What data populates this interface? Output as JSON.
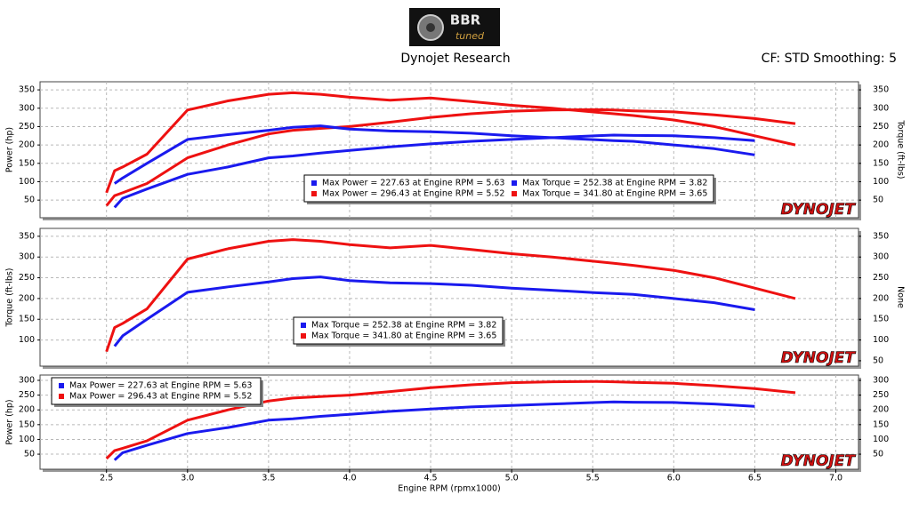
{
  "header": {
    "logo": "BBR",
    "logo_sub": "tuned",
    "title": "Dynojet Research",
    "settings": "CF: STD Smoothing: 5"
  },
  "chart_data": [
    {
      "type": "line",
      "ylabel": "Power (hp)",
      "y2label": "Torque (ft-lbs)",
      "watermark": "DYNOJET",
      "xlim": [
        2.09,
        7.14
      ],
      "ylim": [
        2,
        372
      ],
      "yticks": [
        50,
        100,
        150,
        200,
        250,
        300,
        350
      ],
      "y2lim": [
        2,
        372
      ],
      "y2ticks": [
        50,
        100,
        150,
        200,
        250,
        300,
        350
      ],
      "grid": true,
      "legend": "center",
      "x": [
        2.5,
        2.55,
        2.6,
        2.75,
        3.0,
        3.25,
        3.5,
        3.65,
        3.82,
        4.0,
        4.25,
        4.5,
        4.75,
        5.0,
        5.25,
        5.52,
        5.63,
        5.75,
        6.0,
        6.25,
        6.5,
        6.75
      ],
      "series": [
        {
          "name": "Max Power = 227.63 at Engine RPM = 5.63",
          "color": "#1a1aee",
          "values": [
            null,
            30,
            55,
            80,
            120,
            140,
            165,
            170,
            178,
            185,
            195,
            203,
            210,
            215,
            220,
            225,
            227,
            226,
            225,
            220,
            212,
            null
          ]
        },
        {
          "name": "Max Power = 296.43 at Engine RPM = 5.52",
          "color": "#ee1111",
          "values": [
            35,
            62,
            70,
            95,
            165,
            200,
            230,
            240,
            245,
            250,
            262,
            275,
            285,
            292,
            295,
            296,
            295,
            293,
            290,
            282,
            272,
            258
          ]
        },
        {
          "name": "Max Torque = 252.38 at Engine RPM = 3.82",
          "color": "#1a1aee",
          "axis": "y2",
          "values": [
            null,
            95,
            110,
            150,
            215,
            228,
            240,
            248,
            252,
            243,
            238,
            236,
            232,
            225,
            220,
            214,
            212,
            210,
            200,
            190,
            173,
            null
          ]
        },
        {
          "name": "Max Torque = 341.80 at Engine RPM = 3.65",
          "color": "#ee1111",
          "axis": "y2",
          "values": [
            70,
            130,
            140,
            175,
            295,
            320,
            338,
            342,
            338,
            330,
            322,
            328,
            318,
            308,
            300,
            289,
            285,
            280,
            268,
            250,
            225,
            200
          ]
        }
      ]
    },
    {
      "type": "line",
      "ylabel": "Torque (ft-lbs)",
      "y2label": "None",
      "watermark": "DYNOJET",
      "xlim": [
        2.09,
        7.14
      ],
      "ylim": [
        37,
        369
      ],
      "yticks": [
        100,
        150,
        200,
        250,
        300,
        350
      ],
      "y2lim": [
        37,
        369
      ],
      "y2ticks": [
        50,
        100,
        150,
        200,
        250,
        300,
        350
      ],
      "grid": true,
      "legend": "lower-center",
      "x": [
        2.5,
        2.55,
        2.6,
        2.75,
        3.0,
        3.25,
        3.5,
        3.65,
        3.82,
        4.0,
        4.25,
        4.5,
        4.75,
        5.0,
        5.25,
        5.52,
        5.63,
        5.75,
        6.0,
        6.25,
        6.5,
        6.75
      ],
      "series": [
        {
          "name": "Max Torque = 252.38 at Engine RPM = 3.82",
          "color": "#1a1aee",
          "values": [
            null,
            85,
            110,
            150,
            215,
            228,
            240,
            248,
            252,
            243,
            238,
            236,
            232,
            225,
            220,
            214,
            212,
            210,
            200,
            190,
            173,
            null
          ]
        },
        {
          "name": "Max Torque = 341.80 at Engine RPM = 3.65",
          "color": "#ee1111",
          "values": [
            72,
            130,
            140,
            175,
            295,
            320,
            338,
            342,
            338,
            330,
            322,
            328,
            318,
            308,
            300,
            289,
            285,
            280,
            268,
            250,
            225,
            200
          ]
        }
      ]
    },
    {
      "type": "line",
      "ylabel": "Power (hp)",
      "xlabel": "Engine RPM (rpmx1000)",
      "watermark": "DYNOJET",
      "xlim": [
        2.09,
        7.14
      ],
      "ylim": [
        -1,
        318
      ],
      "yticks": [
        50,
        100,
        150,
        200,
        250,
        300
      ],
      "y2lim": [
        -1,
        318
      ],
      "y2ticks": [
        50,
        100,
        150,
        200,
        250,
        300
      ],
      "grid": true,
      "legend": "upper-left",
      "xticks": [
        2.5,
        {
          "value": 3,
          "label": "3.0"
        },
        3.5,
        {
          "value": 4,
          "label": "4.0"
        },
        4.5,
        {
          "value": 5,
          "label": "5.0"
        },
        5.5,
        {
          "value": 6,
          "label": "6.0"
        },
        6.5,
        {
          "value": 7,
          "label": "7.0"
        }
      ],
      "x": [
        2.5,
        2.55,
        2.6,
        2.75,
        3.0,
        3.25,
        3.5,
        3.65,
        3.82,
        4.0,
        4.25,
        4.5,
        4.75,
        5.0,
        5.25,
        5.52,
        5.63,
        5.75,
        6.0,
        6.25,
        6.5,
        6.75
      ],
      "series": [
        {
          "name": "Max Power = 227.63 at Engine RPM = 5.63",
          "color": "#1a1aee",
          "values": [
            null,
            30,
            55,
            80,
            120,
            140,
            165,
            170,
            178,
            185,
            195,
            203,
            210,
            215,
            220,
            225,
            227,
            226,
            225,
            220,
            212,
            null
          ]
        },
        {
          "name": "Max Power = 296.43 at Engine RPM = 5.52",
          "color": "#ee1111",
          "values": [
            35,
            62,
            70,
            95,
            165,
            200,
            230,
            240,
            245,
            250,
            262,
            275,
            285,
            292,
            295,
            296,
            295,
            293,
            290,
            282,
            272,
            258
          ]
        }
      ]
    }
  ]
}
